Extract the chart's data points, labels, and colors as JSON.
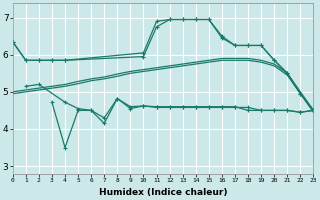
{
  "xlabel": "Humidex (Indice chaleur)",
  "bg_color": "#cce8e8",
  "grid_color": "#ffffff",
  "line_color": "#1a7a6a",
  "xlim": [
    0,
    23
  ],
  "ylim": [
    2.8,
    7.4
  ],
  "xticks": [
    0,
    1,
    2,
    3,
    4,
    5,
    6,
    7,
    8,
    9,
    10,
    11,
    12,
    13,
    14,
    15,
    16,
    17,
    18,
    19,
    20,
    21,
    22,
    23
  ],
  "yticks": [
    3,
    4,
    5,
    6,
    7
  ],
  "line_top_x": [
    0,
    1,
    2,
    3,
    4,
    10,
    11,
    12,
    13,
    14,
    15,
    16,
    17,
    18,
    19,
    20,
    21,
    22,
    23
  ],
  "line_top_y": [
    6.35,
    5.85,
    5.85,
    5.85,
    5.85,
    6.05,
    6.9,
    6.95,
    6.95,
    6.95,
    6.95,
    6.5,
    6.25,
    6.25,
    6.25,
    5.85,
    5.5,
    4.95,
    4.5
  ],
  "line_top2_x": [
    0,
    1,
    2,
    3,
    4,
    10,
    11,
    12,
    13,
    14,
    15,
    16,
    17,
    18,
    19,
    20,
    21,
    22,
    23
  ],
  "line_top2_y": [
    6.35,
    5.85,
    5.85,
    5.85,
    5.85,
    5.95,
    6.75,
    6.95,
    6.95,
    6.95,
    6.95,
    6.45,
    6.25,
    6.25,
    6.25,
    5.85,
    5.5,
    4.95,
    4.5
  ],
  "line_mid1_x": [
    0,
    1,
    2,
    3,
    4,
    5,
    6,
    7,
    8,
    9,
    10,
    11,
    12,
    13,
    14,
    15,
    16,
    17,
    18,
    19,
    20,
    21,
    22,
    23
  ],
  "line_mid1_y": [
    5.0,
    5.05,
    5.1,
    5.15,
    5.2,
    5.28,
    5.35,
    5.4,
    5.48,
    5.55,
    5.6,
    5.65,
    5.7,
    5.75,
    5.8,
    5.85,
    5.9,
    5.9,
    5.9,
    5.85,
    5.75,
    5.5,
    5.0,
    4.5
  ],
  "line_mid2_x": [
    0,
    1,
    2,
    3,
    4,
    5,
    6,
    7,
    8,
    9,
    10,
    11,
    12,
    13,
    14,
    15,
    16,
    17,
    18,
    19,
    20,
    21,
    22,
    23
  ],
  "line_mid2_y": [
    4.95,
    5.0,
    5.05,
    5.1,
    5.15,
    5.22,
    5.3,
    5.35,
    5.42,
    5.5,
    5.55,
    5.6,
    5.65,
    5.7,
    5.75,
    5.8,
    5.85,
    5.85,
    5.85,
    5.8,
    5.7,
    5.45,
    4.95,
    4.45
  ],
  "line_low1_x": [
    1,
    2,
    4,
    5,
    6,
    7,
    8,
    9,
    10,
    11,
    12,
    13,
    14,
    15,
    16,
    17,
    18,
    19,
    20,
    21,
    22,
    23
  ],
  "line_low1_y": [
    5.15,
    5.2,
    4.72,
    4.55,
    4.5,
    4.3,
    4.82,
    4.6,
    4.62,
    4.6,
    4.6,
    4.6,
    4.6,
    4.6,
    4.6,
    4.6,
    4.5,
    4.5,
    4.5,
    4.5,
    4.45,
    4.5
  ],
  "line_low2_x": [
    3,
    4,
    5,
    6,
    7,
    8,
    9,
    10,
    11,
    12,
    13,
    14,
    15,
    16,
    17,
    18,
    19,
    20,
    21,
    22,
    23
  ],
  "line_low2_y": [
    4.72,
    3.5,
    4.5,
    4.5,
    4.15,
    4.82,
    4.55,
    4.62,
    4.58,
    4.58,
    4.58,
    4.58,
    4.58,
    4.58,
    4.58,
    4.58,
    4.5,
    4.5,
    4.5,
    4.45,
    4.5
  ]
}
